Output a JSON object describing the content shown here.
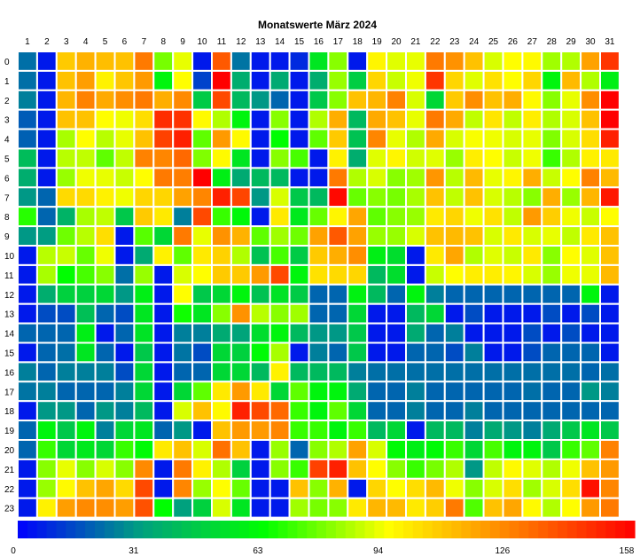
{
  "chart_data": {
    "type": "heatmap",
    "title": "Monatswerte März 2024",
    "x_labels": [
      "1",
      "2",
      "3",
      "4",
      "5",
      "6",
      "7",
      "8",
      "9",
      "10",
      "11",
      "12",
      "13",
      "14",
      "15",
      "16",
      "17",
      "18",
      "19",
      "20",
      "21",
      "22",
      "23",
      "24",
      "25",
      "26",
      "27",
      "28",
      "29",
      "30",
      "31"
    ],
    "y_labels": [
      "0",
      "1",
      "2",
      "3",
      "4",
      "5",
      "6",
      "7",
      "8",
      "9",
      "10",
      "11",
      "12",
      "13",
      "14",
      "15",
      "16",
      "17",
      "18",
      "19",
      "20",
      "21",
      "22",
      "23"
    ],
    "color_scale": {
      "min": 0,
      "max": 158,
      "tick_values": [
        0,
        31,
        63,
        94,
        126,
        158
      ],
      "colors": [
        "#0000ff",
        "#00a080",
        "#00ff00",
        "#ffff00",
        "#ff8000",
        "#ff0000"
      ]
    },
    "grid_lines": true,
    "legend_placement": "bottom",
    "values": [
      [
        22,
        5,
        108,
        114,
        111,
        110,
        128,
        78,
        92,
        5,
        136,
        23,
        5,
        5,
        8,
        55,
        80,
        5,
        97,
        91,
        92,
        128,
        122,
        110,
        90,
        95,
        96,
        83,
        85,
        118,
        145
      ],
      [
        22,
        5,
        110,
        119,
        98,
        109,
        120,
        60,
        95,
        13,
        158,
        36,
        5,
        35,
        5,
        36,
        82,
        47,
        105,
        88,
        93,
        145,
        105,
        91,
        102,
        95,
        105,
        60,
        112,
        85,
        58
      ],
      [
        25,
        5,
        113,
        126,
        116,
        123,
        128,
        115,
        124,
        46,
        140,
        40,
        30,
        20,
        5,
        45,
        80,
        110,
        113,
        126,
        90,
        50,
        108,
        123,
        110,
        115,
        96,
        80,
        92,
        123,
        158
      ],
      [
        18,
        5,
        110,
        110,
        95,
        93,
        103,
        147,
        146,
        96,
        85,
        60,
        5,
        80,
        5,
        85,
        115,
        40,
        116,
        110,
        92,
        128,
        116,
        87,
        101,
        87,
        99,
        85,
        90,
        110,
        158
      ],
      [
        19,
        5,
        84,
        95,
        86,
        92,
        110,
        142,
        150,
        75,
        120,
        96,
        5,
        63,
        5,
        75,
        108,
        43,
        125,
        92,
        85,
        116,
        90,
        94,
        93,
        90,
        92,
        79,
        90,
        103,
        150
      ],
      [
        41,
        5,
        86,
        87,
        75,
        87,
        126,
        125,
        132,
        79,
        96,
        55,
        5,
        80,
        72,
        5,
        98,
        36,
        91,
        97,
        89,
        91,
        82,
        99,
        95,
        88,
        93,
        70,
        85,
        98,
        100
      ],
      [
        36,
        5,
        82,
        93,
        92,
        88,
        95,
        128,
        127,
        158,
        58,
        35,
        40,
        40,
        5,
        5,
        128,
        85,
        90,
        80,
        83,
        121,
        86,
        112,
        92,
        97,
        115,
        88,
        95,
        126,
        112
      ],
      [
        30,
        20,
        104,
        104,
        98,
        93,
        105,
        105,
        118,
        125,
        150,
        141,
        30,
        90,
        45,
        40,
        156,
        76,
        80,
        78,
        84,
        110,
        87,
        110,
        90,
        86,
        80,
        115,
        82,
        113,
        152
      ],
      [
        68,
        20,
        38,
        84,
        87,
        45,
        108,
        100,
        25,
        140,
        70,
        61,
        5,
        100,
        56,
        76,
        97,
        117,
        75,
        80,
        82,
        100,
        105,
        93,
        102,
        87,
        120,
        107,
        93,
        88,
        95
      ],
      [
        30,
        31,
        77,
        86,
        103,
        5,
        74,
        50,
        128,
        92,
        122,
        114,
        75,
        83,
        77,
        118,
        136,
        118,
        82,
        82,
        90,
        110,
        112,
        110,
        90,
        100,
        90,
        92,
        87,
        100,
        110
      ],
      [
        5,
        86,
        88,
        76,
        93,
        5,
        35,
        98,
        75,
        100,
        106,
        85,
        43,
        72,
        46,
        108,
        115,
        123,
        58,
        52,
        5,
        100,
        117,
        85,
        91,
        88,
        100,
        80,
        95,
        91,
        110
      ],
      [
        5,
        84,
        63,
        72,
        80,
        22,
        82,
        5,
        90,
        95,
        108,
        108,
        120,
        140,
        60,
        102,
        104,
        105,
        40,
        52,
        5,
        88,
        95,
        99,
        99,
        97,
        90,
        82,
        93,
        92,
        112
      ],
      [
        5,
        36,
        48,
        48,
        50,
        30,
        58,
        5,
        95,
        45,
        50,
        60,
        43,
        54,
        46,
        20,
        20,
        59,
        40,
        20,
        60,
        25,
        20,
        20,
        20,
        20,
        20,
        20,
        20,
        60,
        5
      ],
      [
        5,
        15,
        15,
        42,
        20,
        15,
        55,
        5,
        65,
        55,
        80,
        122,
        86,
        80,
        83,
        20,
        20,
        50,
        5,
        5,
        40,
        50,
        5,
        15,
        5,
        5,
        5,
        15,
        5,
        15,
        5
      ],
      [
        20,
        20,
        20,
        58,
        5,
        20,
        54,
        5,
        25,
        25,
        35,
        33,
        52,
        60,
        40,
        30,
        30,
        45,
        5,
        5,
        35,
        20,
        25,
        5,
        5,
        5,
        15,
        5,
        15,
        5,
        5
      ],
      [
        5,
        20,
        22,
        55,
        20,
        5,
        45,
        5,
        23,
        15,
        50,
        48,
        62,
        84,
        5,
        25,
        20,
        45,
        5,
        5,
        20,
        20,
        15,
        25,
        5,
        5,
        15,
        20,
        20,
        20,
        5
      ],
      [
        25,
        20,
        25,
        25,
        25,
        15,
        50,
        5,
        20,
        20,
        50,
        50,
        40,
        98,
        40,
        40,
        40,
        25,
        22,
        22,
        22,
        22,
        22,
        22,
        22,
        22,
        22,
        22,
        22,
        20,
        22
      ],
      [
        23,
        25,
        20,
        20,
        20,
        25,
        50,
        5,
        50,
        75,
        100,
        120,
        100,
        50,
        75,
        60,
        60,
        35,
        20,
        20,
        25,
        20,
        20,
        20,
        20,
        20,
        22,
        20,
        20,
        30,
        25
      ],
      [
        5,
        30,
        30,
        20,
        30,
        25,
        40,
        5,
        90,
        110,
        96,
        150,
        140,
        132,
        70,
        60,
        75,
        50,
        20,
        20,
        25,
        20,
        20,
        25,
        20,
        20,
        20,
        20,
        20,
        20,
        20
      ],
      [
        20,
        60,
        45,
        60,
        25,
        50,
        55,
        20,
        30,
        5,
        110,
        120,
        120,
        125,
        70,
        70,
        60,
        70,
        40,
        50,
        5,
        40,
        40,
        25,
        35,
        30,
        25,
        35,
        45,
        55,
        45
      ],
      [
        20,
        70,
        50,
        56,
        50,
        70,
        62,
        100,
        110,
        90,
        130,
        110,
        5,
        82,
        20,
        80,
        85,
        118,
        90,
        62,
        58,
        62,
        70,
        50,
        72,
        60,
        60,
        45,
        70,
        75,
        126
      ],
      [
        5,
        80,
        92,
        80,
        90,
        80,
        124,
        5,
        128,
        98,
        85,
        48,
        5,
        80,
        70,
        142,
        150,
        110,
        95,
        80,
        70,
        78,
        85,
        30,
        87,
        96,
        91,
        85,
        93,
        110,
        120
      ],
      [
        5,
        82,
        96,
        110,
        117,
        104,
        140,
        5,
        125,
        82,
        95,
        76,
        5,
        5,
        110,
        80,
        114,
        5,
        105,
        95,
        103,
        112,
        93,
        80,
        90,
        103,
        83,
        90,
        103,
        154,
        125
      ],
      [
        5,
        98,
        119,
        124,
        123,
        119,
        138,
        63,
        32,
        48,
        90,
        55,
        5,
        5,
        83,
        78,
        80,
        100,
        113,
        112,
        100,
        107,
        128,
        73,
        110,
        117,
        96,
        85,
        95,
        120,
        128
      ]
    ]
  }
}
